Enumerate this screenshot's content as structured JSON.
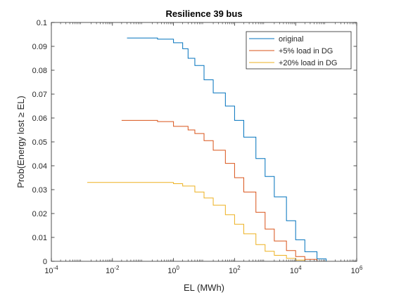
{
  "chart_data": {
    "type": "line",
    "title": "Resilience 39 bus",
    "xlabel": "EL (MWh)",
    "ylabel": "Prob(Energy lost ≥ EL)",
    "x_scale": "log",
    "xlim": [
      0.0001,
      1000000
    ],
    "ylim": [
      0,
      0.1
    ],
    "grid": false,
    "legend_position": "top-right",
    "x_ticks": [
      {
        "value": 0.0001,
        "base": "10",
        "exp": "-4"
      },
      {
        "value": 0.01,
        "base": "10",
        "exp": "-2"
      },
      {
        "value": 1,
        "base": "10",
        "exp": "0"
      },
      {
        "value": 100,
        "base": "10",
        "exp": "2"
      },
      {
        "value": 10000,
        "base": "10",
        "exp": "4"
      },
      {
        "value": 1000000,
        "base": "10",
        "exp": "6"
      }
    ],
    "y_ticks": [
      {
        "value": 0,
        "label": "0"
      },
      {
        "value": 0.01,
        "label": "0.01"
      },
      {
        "value": 0.02,
        "label": "0.02"
      },
      {
        "value": 0.03,
        "label": "0.03"
      },
      {
        "value": 0.04,
        "label": "0.04"
      },
      {
        "value": 0.05,
        "label": "0.05"
      },
      {
        "value": 0.06,
        "label": "0.06"
      },
      {
        "value": 0.07,
        "label": "0.07"
      },
      {
        "value": 0.08,
        "label": "0.08"
      },
      {
        "value": 0.09,
        "label": "0.09"
      },
      {
        "value": 0.1,
        "label": "0.1"
      }
    ],
    "series": [
      {
        "name": "original",
        "color": "#0072BD",
        "x": [
          0.03,
          0.1,
          0.3,
          1,
          2,
          3,
          5,
          10,
          20,
          50,
          100,
          200,
          500,
          1000,
          2000,
          5000,
          10000,
          20000,
          50000,
          100000
        ],
        "y": [
          0.0935,
          0.0935,
          0.093,
          0.0915,
          0.089,
          0.085,
          0.082,
          0.076,
          0.0705,
          0.065,
          0.059,
          0.052,
          0.043,
          0.0355,
          0.027,
          0.017,
          0.009,
          0.004,
          0.001,
          0.0
        ]
      },
      {
        "name": "+5% load in DG",
        "color": "#D95319",
        "x": [
          0.02,
          0.1,
          0.3,
          1,
          3,
          5,
          10,
          20,
          50,
          100,
          200,
          500,
          1000,
          2000,
          5000,
          10000,
          20000,
          50000
        ],
        "y": [
          0.059,
          0.059,
          0.0585,
          0.0565,
          0.055,
          0.0535,
          0.0505,
          0.0465,
          0.041,
          0.035,
          0.029,
          0.0205,
          0.0135,
          0.0085,
          0.0045,
          0.002,
          0.0008,
          0.0
        ]
      },
      {
        "name": "+20% load in DG",
        "color": "#EDB120",
        "x": [
          0.0015,
          0.01,
          0.1,
          0.5,
          1,
          2,
          5,
          10,
          20,
          50,
          100,
          200,
          500,
          1000,
          2000,
          5000,
          10000,
          20000
        ],
        "y": [
          0.033,
          0.033,
          0.033,
          0.033,
          0.0325,
          0.0315,
          0.029,
          0.0265,
          0.0235,
          0.0195,
          0.0155,
          0.0115,
          0.007,
          0.0042,
          0.0025,
          0.0012,
          0.0005,
          0.0
        ]
      }
    ]
  }
}
